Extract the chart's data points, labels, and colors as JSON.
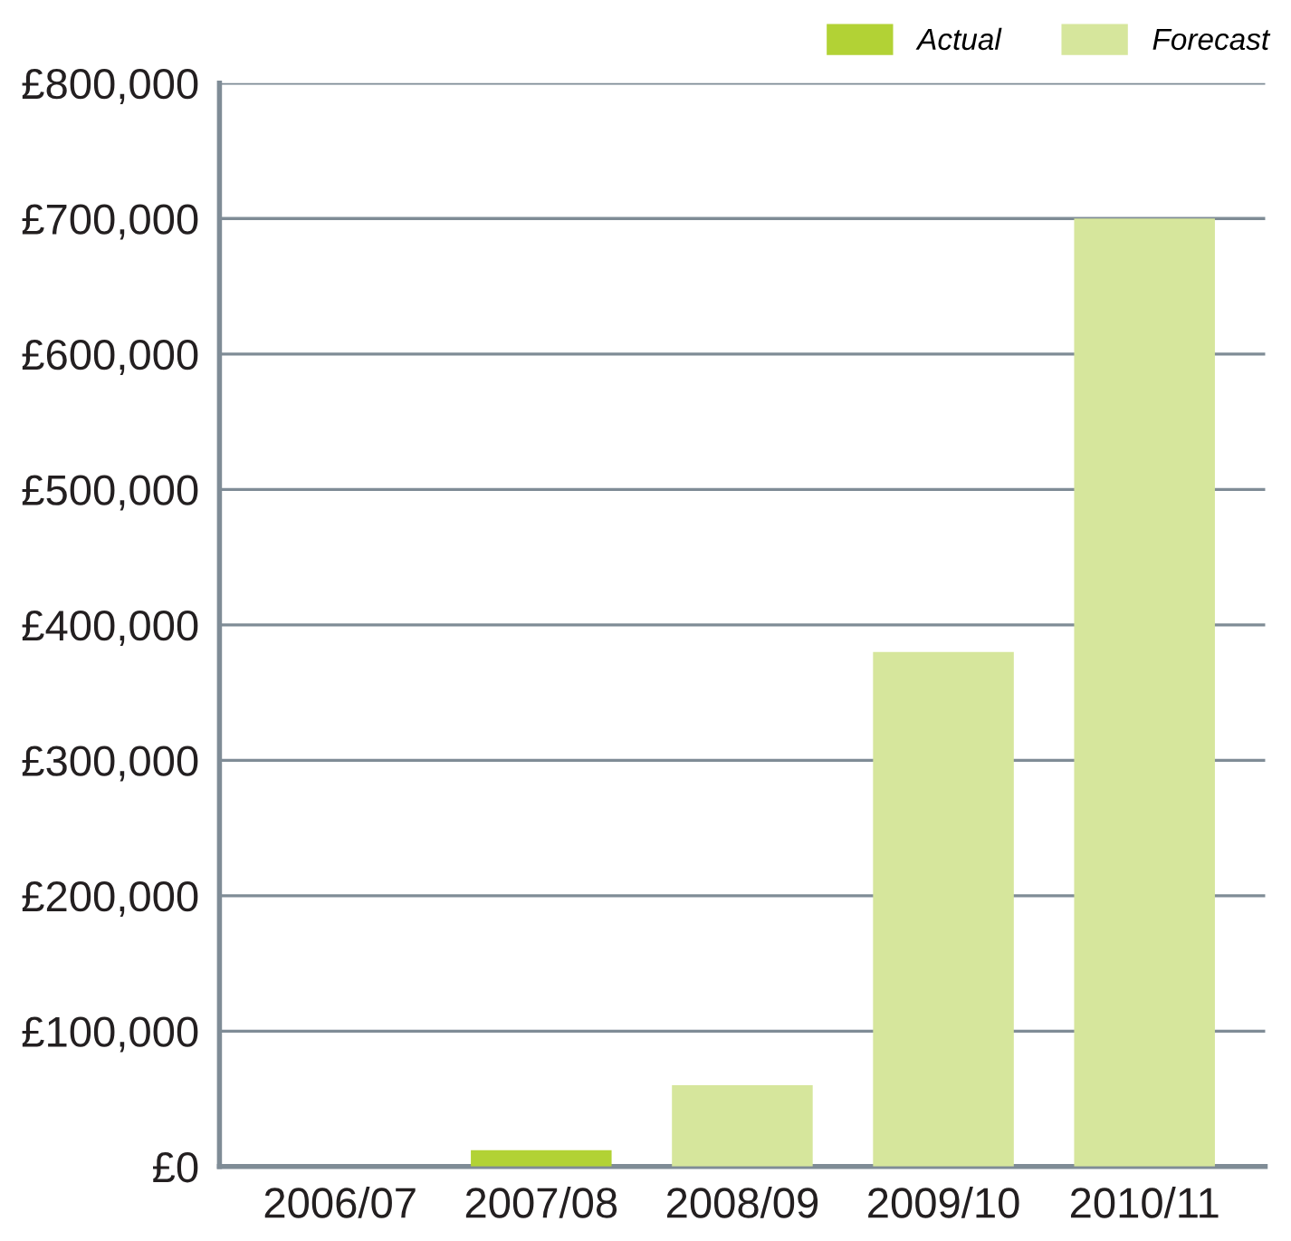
{
  "chart_data": {
    "type": "bar",
    "categories": [
      "2006/07",
      "2007/08",
      "2008/09",
      "2009/10",
      "2010/11"
    ],
    "series": [
      {
        "name": "Actual",
        "color": "#b2d235",
        "values": [
          null,
          12000,
          null,
          null,
          null
        ]
      },
      {
        "name": "Forecast",
        "color": "#d6e69c",
        "values": [
          null,
          null,
          60000,
          380000,
          700000
        ]
      }
    ],
    "ylim": [
      0,
      800000
    ],
    "yticks": [
      {
        "value": 0,
        "label": "£0"
      },
      {
        "value": 100000,
        "label": "£100,000"
      },
      {
        "value": 200000,
        "label": "£200,000"
      },
      {
        "value": 300000,
        "label": "£300,000"
      },
      {
        "value": 400000,
        "label": "£400,000"
      },
      {
        "value": 500000,
        "label": "£500,000"
      },
      {
        "value": 600000,
        "label": "£600,000"
      },
      {
        "value": 700000,
        "label": "£700,000"
      },
      {
        "value": 800000,
        "label": "£800,000"
      }
    ],
    "grid": "y",
    "legend": "top right"
  }
}
